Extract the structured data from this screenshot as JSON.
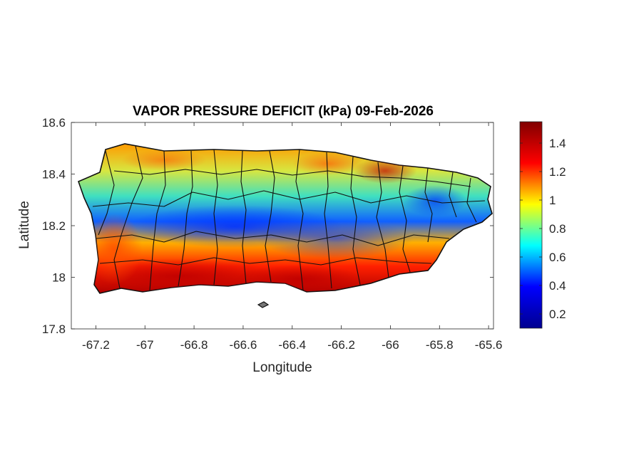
{
  "map": {
    "title": "VAPOR PRESSURE DEFICIT (kPa) 09-Feb-2026",
    "xlabel": "Longitude",
    "ylabel": "Latitude",
    "xlim": [
      -67.3,
      -65.58
    ],
    "ylim": [
      17.8,
      18.6
    ],
    "xticks": [
      -67.2,
      -67,
      -66.8,
      -66.6,
      -66.4,
      -66.2,
      -66,
      -65.8,
      -65.6
    ],
    "yticks": [
      17.8,
      18,
      18.2,
      18.4,
      18.6
    ],
    "region": "Puerto Rico",
    "colormap": "jet",
    "colorbar": {
      "min": 0.1,
      "max": 1.55,
      "ticks": [
        0.2,
        0.4,
        0.6,
        0.8,
        1,
        1.2,
        1.4
      ],
      "colors": [
        "#00008f",
        "#0000ff",
        "#00ffff",
        "#ffff00",
        "#ff0000",
        "#800000"
      ]
    },
    "pattern": {
      "south_coast": "high (~1.4-1.5)",
      "central_mountains": "low (~0.3-0.5)",
      "north_coast": "moderate-high (~0.9-1.3)",
      "northeast": "low (~0.4-0.6)"
    }
  }
}
